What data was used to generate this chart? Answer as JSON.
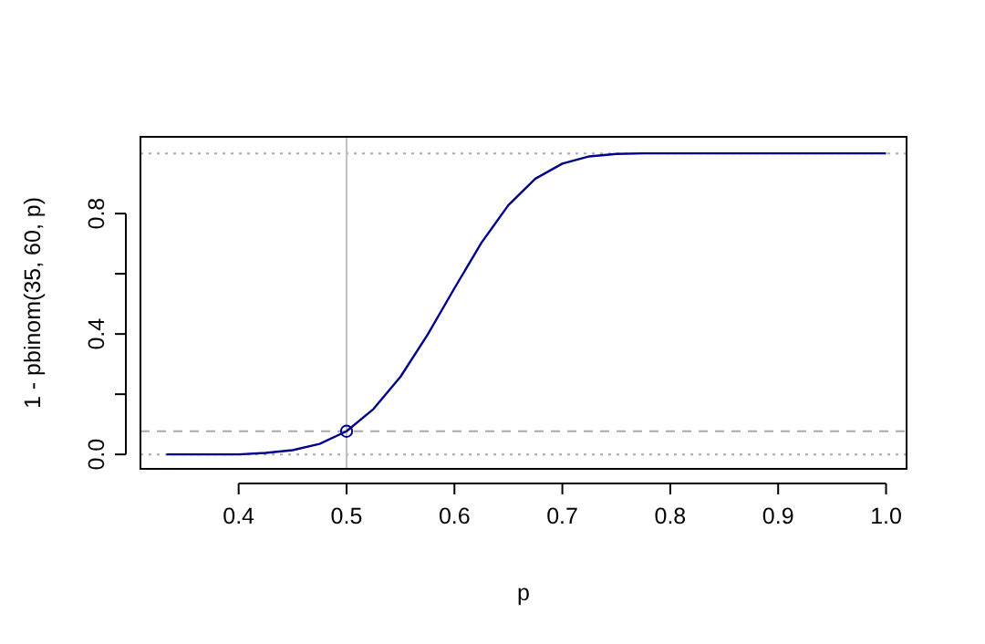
{
  "chart_data": {
    "type": "line",
    "xlabel": "p",
    "ylabel": "1 - pbinom(35, 60, p)",
    "xlim": [
      0.309,
      1.019
    ],
    "ylim": [
      -0.048,
      1.055
    ],
    "xticks": [
      0.4,
      0.5,
      0.6,
      0.7,
      0.8,
      0.9,
      {
        "value": 1,
        "label": "1.0"
      }
    ],
    "yticks": [
      {
        "value": 0,
        "label": "0.0"
      },
      {
        "value": 0.2,
        "label": null
      },
      {
        "value": 0.4,
        "label": "0.4"
      },
      {
        "value": 0.6,
        "label": null
      },
      {
        "value": 0.8,
        "label": "0.8"
      }
    ],
    "grid": false,
    "series": [
      {
        "color": "#00008b",
        "marker": "none",
        "x": [
          0.333,
          0.36,
          0.38,
          0.4,
          0.425,
          0.45,
          0.475,
          0.5,
          0.525,
          0.55,
          0.575,
          0.6,
          0.625,
          0.65,
          0.675,
          0.7,
          0.725,
          0.75,
          0.775,
          0.8,
          0.85,
          0.9,
          0.95,
          1.0
        ],
        "values": [
          0,
          0,
          0,
          0,
          0.005,
          0.014,
          0.035,
          0.077,
          0.151,
          0.258,
          0.397,
          0.552,
          0.703,
          0.828,
          0.916,
          0.966,
          0.99,
          0.998,
          1,
          1,
          1,
          1,
          1,
          1
        ]
      },
      {
        "type": "scatter",
        "color": "#00008b",
        "marker": "circle",
        "x": [
          0.5
        ],
        "values": [
          0.077
        ]
      }
    ],
    "ref_lines": [
      {
        "axis": "y",
        "value": 0,
        "color": "#a9a9a9",
        "line_style": "dotted"
      },
      {
        "axis": "y",
        "value": 1,
        "color": "#a9a9a9",
        "line_style": "dotted"
      },
      {
        "axis": "y",
        "value": 0.077,
        "color": "#a9a9a9",
        "line_style": "dashed"
      },
      {
        "axis": "x",
        "value": 0.5,
        "color": "#c0c0c0",
        "line_style": "solid"
      }
    ]
  }
}
